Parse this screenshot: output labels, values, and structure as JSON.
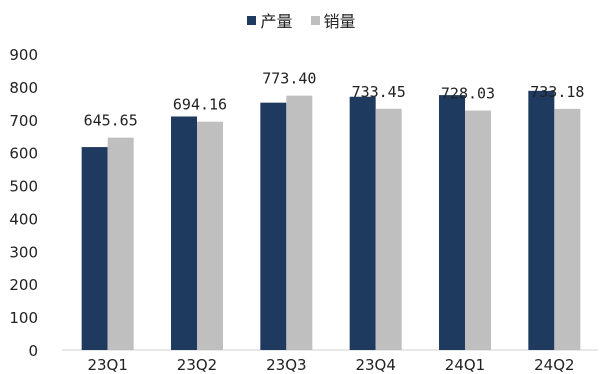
{
  "chart_data": {
    "type": "bar",
    "categories": [
      "23Q1",
      "23Q2",
      "23Q3",
      "23Q4",
      "24Q1",
      "24Q2"
    ],
    "series": [
      {
        "name": "产量",
        "values": [
          617,
          710,
          752,
          770,
          775,
          788
        ],
        "color": "#1f3a5f"
      },
      {
        "name": "销量",
        "values": [
          645.65,
          694.16,
          773.4,
          733.45,
          728.03,
          733.18
        ],
        "color": "#bfbfbf"
      }
    ],
    "data_labels": [
      "645.65",
      "694.16",
      "773.40",
      "733.45",
      "728.03",
      "733.18"
    ],
    "y_ticks": [
      "0",
      "100",
      "200",
      "300",
      "400",
      "500",
      "600",
      "700",
      "800",
      "900"
    ],
    "ylim": [
      0,
      900
    ],
    "legend_position": "top-center",
    "grid": false
  }
}
